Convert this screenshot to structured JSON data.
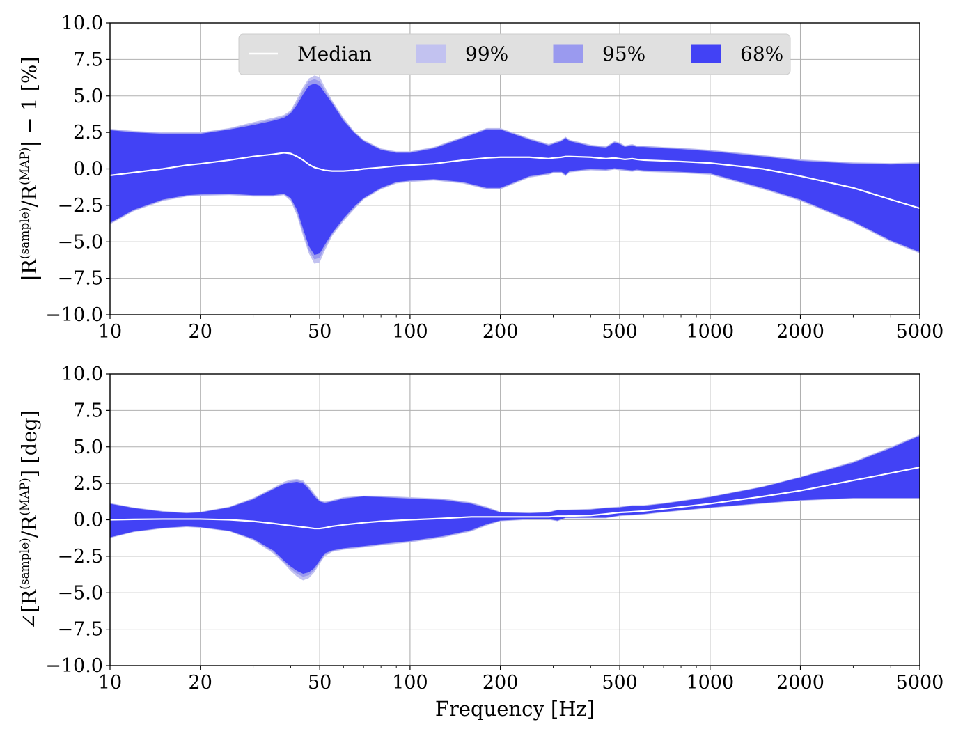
{
  "chart_data": [
    {
      "type": "area",
      "panel": "magnitude",
      "ylabel": {
        "main": "|R",
        "sup1": "(sample)",
        "mid": "/R",
        "sup2": "(MAP)",
        "tail": "| − 1 [%]"
      },
      "xlabel": "",
      "xscale": "log",
      "xlim": [
        10,
        5000
      ],
      "ylim": [
        -10,
        10
      ],
      "grid": true,
      "legend_position": "top-center",
      "x_ticks": [
        10,
        20,
        50,
        100,
        200,
        500,
        1000,
        2000,
        5000
      ],
      "x_tick_labels": [
        "10",
        "20",
        "50",
        "100",
        "200",
        "500",
        "1000",
        "2000",
        "5000"
      ],
      "y_ticks": [
        -10,
        -7.5,
        -5,
        -2.5,
        0,
        2.5,
        5,
        7.5,
        10
      ],
      "y_tick_labels": [
        "−10.0",
        "−7.5",
        "−5.0",
        "−2.5",
        "0.0",
        "2.5",
        "5.0",
        "7.5",
        "10.0"
      ],
      "x": [
        10,
        12,
        15,
        18,
        20,
        25,
        30,
        35,
        38,
        40,
        42,
        44,
        46,
        48,
        50,
        52,
        55,
        60,
        65,
        70,
        80,
        90,
        100,
        120,
        150,
        180,
        200,
        250,
        290,
        300,
        320,
        330,
        340,
        400,
        450,
        480,
        500,
        520,
        550,
        570,
        600,
        700,
        800,
        1000,
        1500,
        2000,
        3000,
        4000,
        5000
      ],
      "median": [
        -0.45,
        -0.25,
        0.0,
        0.25,
        0.35,
        0.6,
        0.85,
        1.0,
        1.1,
        1.05,
        0.85,
        0.6,
        0.3,
        0.1,
        0.0,
        -0.1,
        -0.15,
        -0.15,
        -0.1,
        0.0,
        0.1,
        0.2,
        0.25,
        0.35,
        0.6,
        0.75,
        0.8,
        0.8,
        0.7,
        0.75,
        0.8,
        0.85,
        0.85,
        0.8,
        0.7,
        0.75,
        0.7,
        0.65,
        0.7,
        0.65,
        0.6,
        0.55,
        0.5,
        0.4,
        0.0,
        -0.5,
        -1.3,
        -2.1,
        -2.7
      ],
      "series": [
        {
          "name": "99%",
          "color": "#c2c2f0",
          "upper": [
            2.75,
            2.6,
            2.5,
            2.5,
            2.5,
            2.8,
            3.2,
            3.5,
            3.7,
            4.0,
            4.8,
            5.6,
            6.2,
            6.4,
            6.3,
            5.6,
            4.7,
            3.5,
            2.6,
            2.0,
            1.4,
            1.2,
            1.2,
            1.5,
            2.2,
            2.8,
            2.8,
            2.1,
            1.7,
            1.8,
            2.0,
            2.2,
            2.0,
            1.65,
            1.55,
            1.9,
            1.8,
            1.6,
            1.7,
            1.6,
            1.6,
            1.5,
            1.45,
            1.3,
            0.95,
            0.65,
            0.45,
            0.4,
            0.45
          ],
          "lower": [
            -3.8,
            -2.9,
            -2.2,
            -1.9,
            -1.85,
            -1.8,
            -1.9,
            -1.9,
            -1.8,
            -2.2,
            -3.2,
            -4.6,
            -5.8,
            -6.5,
            -6.4,
            -5.6,
            -4.6,
            -3.6,
            -2.8,
            -2.1,
            -1.4,
            -1.0,
            -0.9,
            -0.8,
            -1.0,
            -1.4,
            -1.4,
            -0.6,
            -0.4,
            -0.3,
            -0.3,
            -0.5,
            -0.25,
            -0.1,
            -0.15,
            -0.05,
            -0.1,
            -0.15,
            -0.2,
            -0.15,
            -0.2,
            -0.25,
            -0.3,
            -0.4,
            -1.4,
            -2.2,
            -3.7,
            -5.0,
            -5.8
          ]
        },
        {
          "name": "95%",
          "color": "#9a9aef",
          "upper": [
            2.7,
            2.55,
            2.45,
            2.45,
            2.45,
            2.75,
            3.1,
            3.4,
            3.6,
            3.9,
            4.6,
            5.4,
            6.0,
            6.15,
            6.0,
            5.4,
            4.6,
            3.4,
            2.55,
            1.95,
            1.35,
            1.15,
            1.15,
            1.45,
            2.15,
            2.75,
            2.75,
            2.05,
            1.65,
            1.75,
            1.95,
            2.15,
            1.95,
            1.6,
            1.5,
            1.85,
            1.75,
            1.55,
            1.65,
            1.55,
            1.55,
            1.45,
            1.4,
            1.25,
            0.9,
            0.6,
            0.4,
            0.35,
            0.4
          ],
          "lower": [
            -3.75,
            -2.85,
            -2.15,
            -1.85,
            -1.8,
            -1.75,
            -1.85,
            -1.85,
            -1.75,
            -2.1,
            -3.0,
            -4.4,
            -5.6,
            -6.2,
            -6.1,
            -5.4,
            -4.5,
            -3.5,
            -2.7,
            -2.05,
            -1.35,
            -0.95,
            -0.85,
            -0.75,
            -0.95,
            -1.35,
            -1.35,
            -0.55,
            -0.35,
            -0.25,
            -0.25,
            -0.45,
            -0.2,
            -0.05,
            -0.1,
            0.0,
            -0.05,
            -0.1,
            -0.15,
            -0.1,
            -0.15,
            -0.2,
            -0.25,
            -0.35,
            -1.35,
            -2.15,
            -3.65,
            -4.95,
            -5.75
          ]
        },
        {
          "name": "68%",
          "color": "#4242f5",
          "upper": [
            2.65,
            2.5,
            2.4,
            2.4,
            2.4,
            2.7,
            3.0,
            3.3,
            3.5,
            3.8,
            4.4,
            5.1,
            5.7,
            5.85,
            5.7,
            5.2,
            4.5,
            3.3,
            2.5,
            1.9,
            1.3,
            1.1,
            1.1,
            1.4,
            2.1,
            2.7,
            2.7,
            2.0,
            1.6,
            1.7,
            1.9,
            2.1,
            1.9,
            1.55,
            1.45,
            1.8,
            1.7,
            1.5,
            1.6,
            1.5,
            1.5,
            1.4,
            1.35,
            1.2,
            0.85,
            0.55,
            0.35,
            0.3,
            0.35
          ],
          "lower": [
            -3.7,
            -2.8,
            -2.1,
            -1.8,
            -1.75,
            -1.7,
            -1.8,
            -1.8,
            -1.7,
            -2.0,
            -2.8,
            -4.1,
            -5.3,
            -5.9,
            -5.8,
            -5.2,
            -4.4,
            -3.4,
            -2.6,
            -2.0,
            -1.3,
            -0.9,
            -0.8,
            -0.7,
            -0.9,
            -1.3,
            -1.3,
            -0.5,
            -0.3,
            -0.2,
            -0.2,
            -0.4,
            -0.15,
            0.0,
            -0.05,
            0.05,
            0.0,
            -0.05,
            -0.1,
            -0.05,
            -0.1,
            -0.15,
            -0.2,
            -0.3,
            -1.3,
            -2.1,
            -3.6,
            -4.9,
            -5.7
          ]
        }
      ]
    },
    {
      "type": "area",
      "panel": "phase",
      "ylabel": {
        "main": "∠[R",
        "sup1": "(sample)",
        "mid": "/R",
        "sup2": "(MAP)",
        "tail": "] [deg]"
      },
      "xlabel": "Frequency [Hz]",
      "xscale": "log",
      "xlim": [
        10,
        5000
      ],
      "ylim": [
        -10,
        10
      ],
      "grid": true,
      "x_ticks": [
        10,
        20,
        50,
        100,
        200,
        500,
        1000,
        2000,
        5000
      ],
      "x_tick_labels": [
        "10",
        "20",
        "50",
        "100",
        "200",
        "500",
        "1000",
        "2000",
        "5000"
      ],
      "y_ticks": [
        -10,
        -7.5,
        -5,
        -2.5,
        0,
        2.5,
        5,
        7.5,
        10
      ],
      "y_tick_labels": [
        "−10.0",
        "−7.5",
        "−5.0",
        "−2.5",
        "0.0",
        "2.5",
        "5.0",
        "7.5",
        "10.0"
      ],
      "x": [
        10,
        12,
        15,
        18,
        20,
        25,
        30,
        35,
        38,
        40,
        42,
        44,
        46,
        48,
        50,
        52,
        55,
        60,
        70,
        80,
        100,
        130,
        160,
        180,
        200,
        250,
        290,
        310,
        330,
        400,
        450,
        500,
        550,
        600,
        700,
        1000,
        1500,
        2000,
        3000,
        4000,
        5000
      ],
      "median": [
        0.0,
        0.03,
        0.05,
        0.05,
        0.05,
        0.0,
        -0.1,
        -0.25,
        -0.35,
        -0.4,
        -0.45,
        -0.5,
        -0.55,
        -0.6,
        -0.6,
        -0.55,
        -0.45,
        -0.35,
        -0.2,
        -0.1,
        0.0,
        0.1,
        0.2,
        0.2,
        0.2,
        0.2,
        0.2,
        0.25,
        0.25,
        0.3,
        0.4,
        0.5,
        0.55,
        0.6,
        0.75,
        1.1,
        1.6,
        2.0,
        2.7,
        3.2,
        3.6
      ],
      "series": [
        {
          "name": "99%",
          "color": "#c2c2f0",
          "upper": [
            1.15,
            0.85,
            0.6,
            0.5,
            0.55,
            0.9,
            1.5,
            2.2,
            2.6,
            2.75,
            2.8,
            2.7,
            2.3,
            1.8,
            1.35,
            1.25,
            1.35,
            1.55,
            1.65,
            1.65,
            1.55,
            1.45,
            1.2,
            0.9,
            0.55,
            0.5,
            0.55,
            0.7,
            0.7,
            0.75,
            0.85,
            0.9,
            1.0,
            1.0,
            1.15,
            1.6,
            2.3,
            2.95,
            4.0,
            5.0,
            5.85
          ],
          "lower": [
            -1.25,
            -0.85,
            -0.6,
            -0.5,
            -0.55,
            -0.8,
            -1.4,
            -2.3,
            -3.0,
            -3.5,
            -3.9,
            -4.15,
            -4.0,
            -3.6,
            -3.0,
            -2.5,
            -2.2,
            -2.05,
            -1.9,
            -1.75,
            -1.55,
            -1.2,
            -0.8,
            -0.4,
            -0.1,
            0.0,
            0.0,
            -0.1,
            0.1,
            0.1,
            0.1,
            0.25,
            0.3,
            0.35,
            0.5,
            0.8,
            1.1,
            1.3,
            1.45,
            1.45,
            1.45
          ]
        },
        {
          "name": "95%",
          "color": "#9a9aef",
          "upper": [
            1.12,
            0.82,
            0.57,
            0.47,
            0.52,
            0.87,
            1.45,
            2.15,
            2.5,
            2.65,
            2.7,
            2.6,
            2.2,
            1.7,
            1.3,
            1.2,
            1.3,
            1.5,
            1.62,
            1.6,
            1.5,
            1.4,
            1.15,
            0.85,
            0.52,
            0.47,
            0.52,
            0.67,
            0.67,
            0.72,
            0.82,
            0.87,
            0.97,
            0.97,
            1.12,
            1.57,
            2.27,
            2.92,
            3.95,
            4.95,
            5.8
          ],
          "lower": [
            -1.22,
            -0.82,
            -0.57,
            -0.47,
            -0.52,
            -0.77,
            -1.35,
            -2.2,
            -2.9,
            -3.35,
            -3.7,
            -3.9,
            -3.8,
            -3.45,
            -2.9,
            -2.4,
            -2.15,
            -2.0,
            -1.85,
            -1.7,
            -1.5,
            -1.15,
            -0.75,
            -0.35,
            -0.07,
            0.03,
            0.03,
            -0.07,
            0.13,
            0.13,
            0.13,
            0.28,
            0.33,
            0.38,
            0.53,
            0.83,
            1.13,
            1.33,
            1.48,
            1.48,
            1.48
          ]
        },
        {
          "name": "68%",
          "color": "#4242f5",
          "upper": [
            1.1,
            0.8,
            0.55,
            0.45,
            0.5,
            0.85,
            1.4,
            2.1,
            2.45,
            2.55,
            2.6,
            2.5,
            2.1,
            1.6,
            1.25,
            1.15,
            1.25,
            1.45,
            1.6,
            1.55,
            1.45,
            1.35,
            1.1,
            0.8,
            0.5,
            0.45,
            0.5,
            0.65,
            0.65,
            0.7,
            0.8,
            0.85,
            0.95,
            0.95,
            1.1,
            1.55,
            2.25,
            2.9,
            3.9,
            4.9,
            5.75
          ],
          "lower": [
            -1.2,
            -0.8,
            -0.55,
            -0.45,
            -0.5,
            -0.75,
            -1.3,
            -2.1,
            -2.8,
            -3.2,
            -3.5,
            -3.7,
            -3.6,
            -3.3,
            -2.8,
            -2.3,
            -2.1,
            -1.95,
            -1.8,
            -1.65,
            -1.45,
            -1.1,
            -0.7,
            -0.3,
            -0.05,
            0.05,
            0.05,
            -0.05,
            0.15,
            0.15,
            0.15,
            0.3,
            0.35,
            0.4,
            0.55,
            0.85,
            1.15,
            1.35,
            1.5,
            1.5,
            1.5
          ]
        }
      ]
    }
  ],
  "legend": {
    "items": [
      {
        "label": "Median",
        "kind": "line",
        "color": "#ffffff"
      },
      {
        "label": "99%",
        "kind": "patch",
        "color": "#c2c2f0"
      },
      {
        "label": "95%",
        "kind": "patch",
        "color": "#9a9aef"
      },
      {
        "label": "68%",
        "kind": "patch",
        "color": "#4242f5"
      }
    ]
  },
  "colors": {
    "grid": "#b0b0b0",
    "median": "#ffffff",
    "legend_background": "#e0e0e0"
  }
}
